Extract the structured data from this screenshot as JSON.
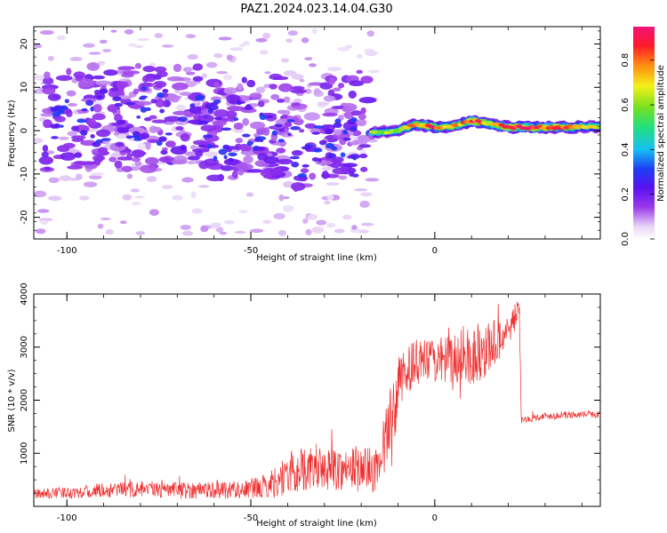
{
  "figure": {
    "title": "PAZ1.2024.023.14.04.G30"
  },
  "chart_data": [
    {
      "type": "heatmap",
      "xlabel": "Height of straight line (km)",
      "ylabel": "Frequency (Hz)",
      "xlim": [
        -109,
        45
      ],
      "ylim": [
        -25,
        24
      ],
      "xticks": [
        -100,
        -50,
        0
      ],
      "yticks": [
        -20,
        -10,
        0,
        10,
        20
      ],
      "colorbar": {
        "label": "Normalized spectral amplitude",
        "range": [
          0,
          0.95
        ],
        "ticks": [
          "0.0",
          "0.2",
          "0.4",
          "0.6",
          "0.8"
        ],
        "tick_values": [
          0,
          0.2,
          0.4,
          0.6,
          0.8
        ],
        "colormap": "rainbow (white-violet-blue-cyan-green-yellow-red-magenta)"
      },
      "ridge": {
        "description": "narrow high-amplitude band near 0 Hz above -15 km",
        "x": [
          -17,
          -10,
          -5,
          0,
          5,
          10,
          15,
          20,
          25,
          30,
          35,
          40,
          45
        ],
        "frequency": [
          -0.5,
          0,
          1.5,
          0.8,
          1,
          2.3,
          1.5,
          0.8,
          0.7,
          0.7,
          0.8,
          0.9,
          0.9
        ],
        "amplitude": [
          0.55,
          0.65,
          0.75,
          0.85,
          0.7,
          0.9,
          0.7,
          0.85,
          0.9,
          0.8,
          0.85,
          0.7,
          0.6
        ]
      }
    },
    {
      "type": "line",
      "xlabel": "Height of straight line (km)",
      "ylabel": "SNR (10 * v/v)",
      "xlim": [
        -109,
        45
      ],
      "ylim": [
        0,
        4000
      ],
      "xticks": [
        -100,
        -50,
        0
      ],
      "yticks": [
        1000,
        2000,
        3000,
        4000
      ],
      "color": "#ee3030",
      "series": [
        {
          "x": [
            -109,
            -100,
            -90,
            -80,
            -70,
            -60,
            -50,
            -45,
            -40,
            -38,
            -35,
            -30,
            -25,
            -20,
            -15,
            -14,
            -12,
            -10,
            -8,
            -5,
            0,
            5,
            8,
            10,
            15,
            20,
            22,
            23,
            23.5,
            25,
            30,
            35,
            40,
            45
          ],
          "values": [
            230,
            260,
            300,
            320,
            300,
            320,
            320,
            400,
            600,
            650,
            700,
            700,
            700,
            720,
            650,
            1000,
            1600,
            2200,
            2550,
            2700,
            2750,
            2700,
            2900,
            2800,
            3000,
            3300,
            3600,
            3700,
            1600,
            1650,
            1700,
            1720,
            1730,
            1730
          ],
          "noise": [
            90,
            110,
            140,
            160,
            160,
            170,
            180,
            250,
            400,
            450,
            400,
            400,
            400,
            450,
            400,
            600,
            700,
            600,
            450,
            450,
            400,
            550,
            550,
            600,
            500,
            350,
            250,
            200,
            70,
            70,
            70,
            70,
            60,
            60
          ]
        }
      ]
    }
  ]
}
